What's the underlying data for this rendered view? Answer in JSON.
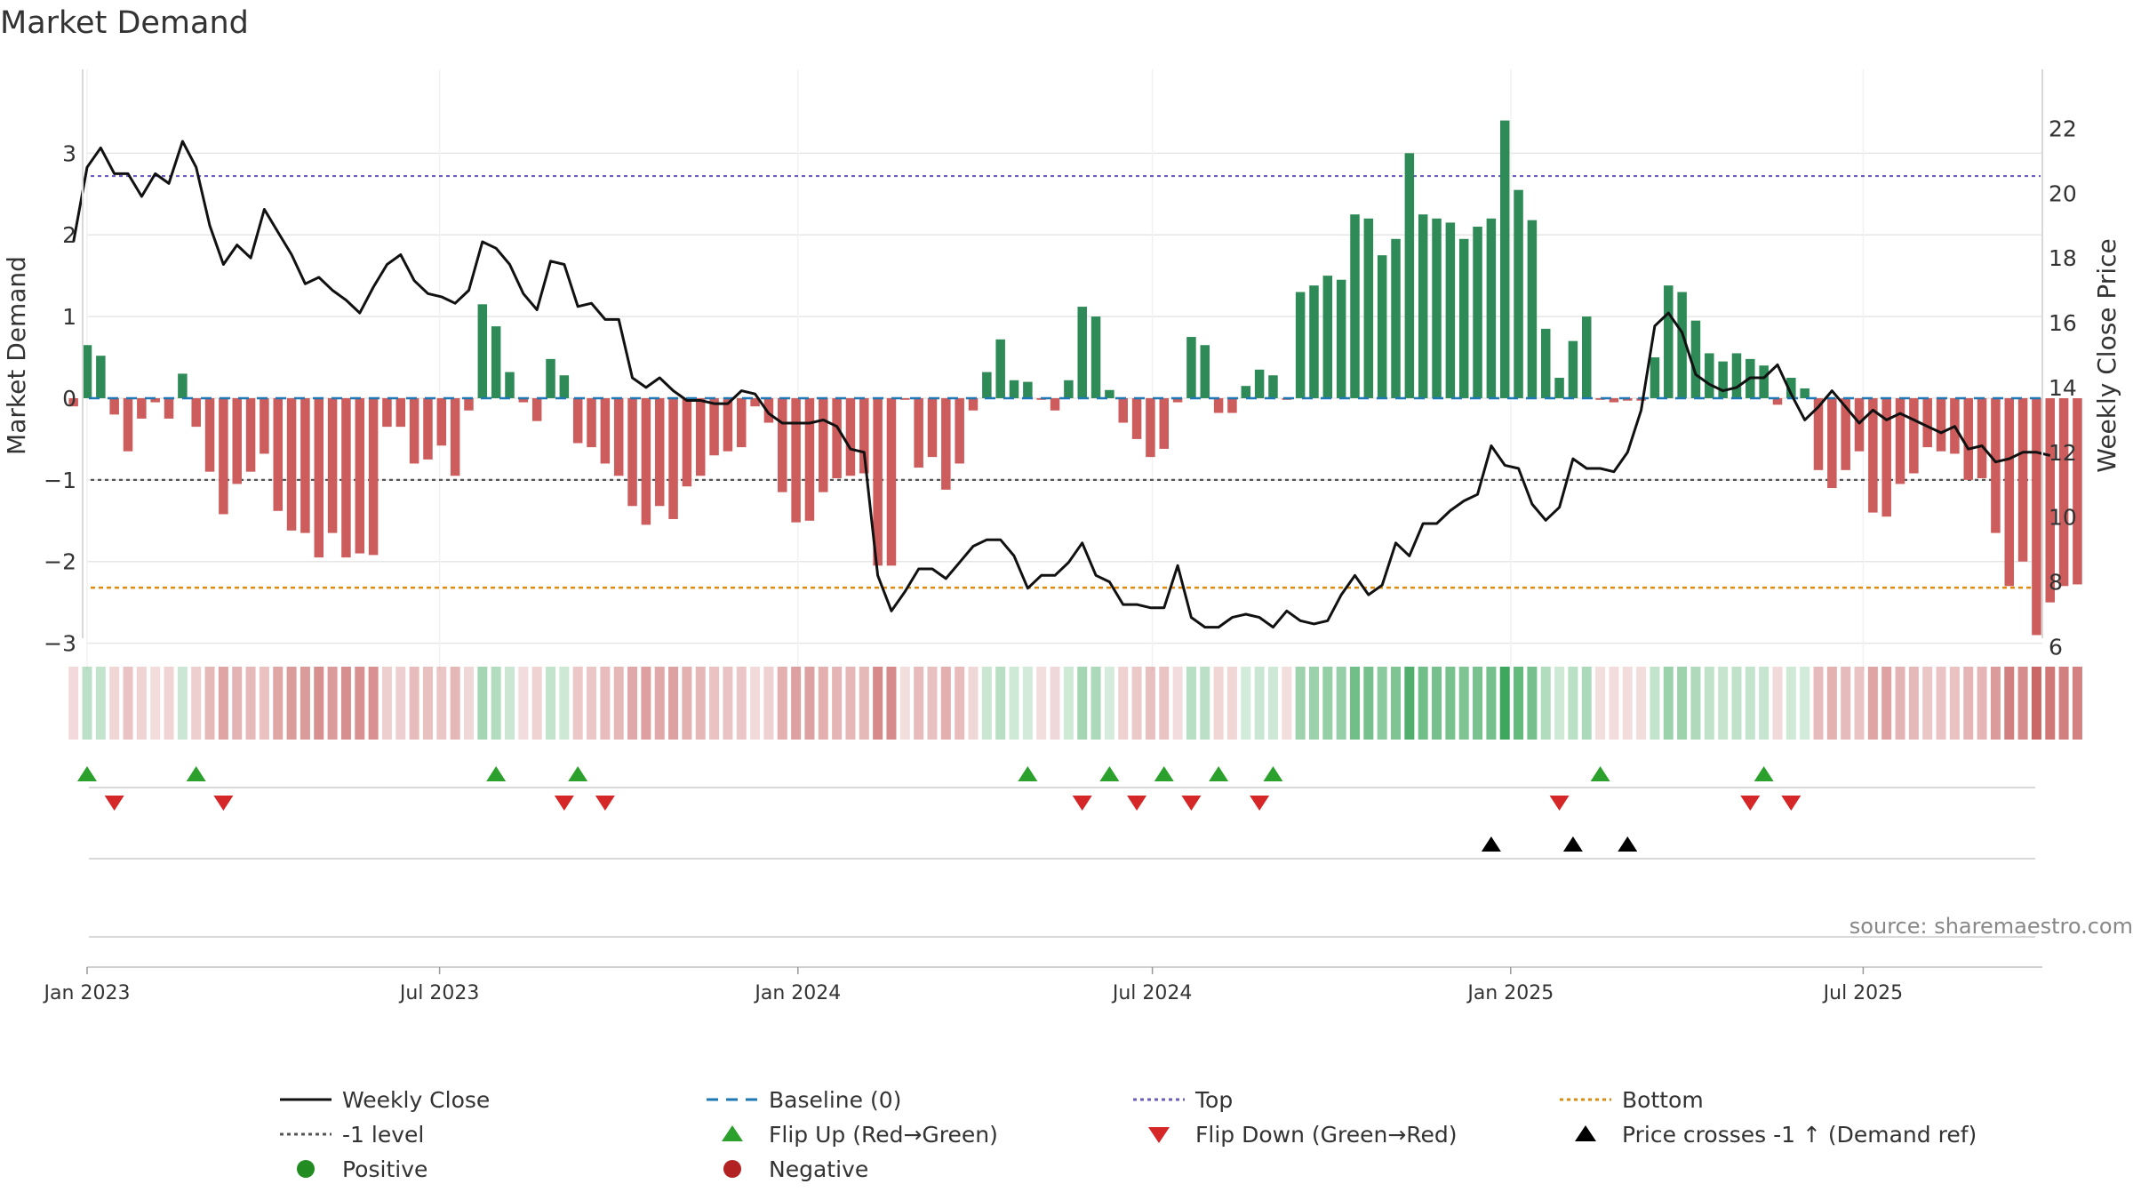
{
  "chart_data": {
    "type": "bar",
    "title": "Market Demand",
    "ylabel_left": "Market Demand",
    "ylabel_right": "Weekly Close Price",
    "source": "source: sharemaestro.com",
    "ylim_left": [
      -3.2,
      3.7
    ],
    "ylim_right": [
      5.6,
      23.0
    ],
    "yticks_left": [
      3,
      2,
      1,
      0,
      -1,
      -2,
      -3
    ],
    "yticks_left_labels": [
      "3",
      "2",
      "1",
      "0",
      "−1",
      "−2",
      "−3"
    ],
    "yticks_right": [
      22,
      20,
      18,
      16,
      14,
      12,
      10,
      8,
      6
    ],
    "x_start": "2023-01-01",
    "x_end": "2025-10-01",
    "x_ticks": [
      {
        "date": "2023-01-01",
        "label": "Jan 2023"
      },
      {
        "date": "2023-07-01",
        "label": "Jul 2023"
      },
      {
        "date": "2024-01-01",
        "label": "Jan 2024"
      },
      {
        "date": "2024-07-01",
        "label": "Jul 2024"
      },
      {
        "date": "2025-01-01",
        "label": "Jan 2025"
      },
      {
        "date": "2025-07-01",
        "label": "Jul 2025"
      }
    ],
    "week_start": "2022-12-25",
    "levels": {
      "top": 2.72,
      "minus_one": -1.0,
      "bottom": -2.32
    },
    "demand": [
      -0.1,
      0.65,
      0.52,
      -0.2,
      -0.65,
      -0.25,
      -0.05,
      -0.25,
      0.3,
      -0.35,
      -0.9,
      -1.42,
      -1.05,
      -0.9,
      -0.68,
      -1.38,
      -1.62,
      -1.65,
      -1.95,
      -1.65,
      -1.95,
      -1.9,
      -1.92,
      -0.35,
      -0.35,
      -0.8,
      -0.75,
      -0.58,
      -0.95,
      -0.15,
      1.15,
      0.88,
      0.32,
      -0.05,
      -0.28,
      0.48,
      0.28,
      -0.55,
      -0.6,
      -0.8,
      -0.95,
      -1.32,
      -1.55,
      -1.32,
      -1.48,
      -1.08,
      -0.95,
      -0.7,
      -0.65,
      -0.6,
      -0.1,
      -0.3,
      -1.15,
      -1.52,
      -1.5,
      -1.15,
      -0.98,
      -0.95,
      -0.92,
      -2.05,
      -2.05,
      -0.02,
      -0.85,
      -0.72,
      -1.12,
      -0.8,
      -0.15,
      0.32,
      0.72,
      0.22,
      0.2,
      -0.02,
      -0.15,
      0.22,
      1.12,
      1.0,
      0.1,
      -0.3,
      -0.5,
      -0.72,
      -0.62,
      -0.05,
      0.75,
      0.65,
      -0.18,
      -0.18,
      0.15,
      0.35,
      0.28,
      -0.02,
      1.3,
      1.38,
      1.5,
      1.45,
      2.25,
      2.2,
      1.75,
      1.95,
      3.0,
      2.25,
      2.2,
      2.15,
      1.95,
      2.1,
      2.2,
      3.4,
      2.55,
      2.18,
      0.85,
      0.25,
      0.7,
      1.0,
      -0.02,
      -0.05,
      -0.03,
      -0.03,
      0.5,
      1.38,
      1.3,
      0.95,
      0.55,
      0.45,
      0.55,
      0.48,
      0.4,
      -0.08,
      0.25,
      0.12,
      -0.88,
      -1.1,
      -0.88,
      -0.65,
      -1.4,
      -1.45,
      -1.05,
      -0.92,
      -0.6,
      -0.65,
      -0.68,
      -1.0,
      -0.98,
      -1.65,
      -2.3,
      -2.0,
      -2.9,
      -2.5,
      -2.3,
      -2.28
    ],
    "close": [
      18.5,
      20.8,
      21.4,
      20.6,
      20.6,
      19.9,
      20.6,
      20.3,
      21.6,
      20.8,
      19.0,
      17.8,
      18.4,
      18.0,
      19.5,
      18.8,
      18.1,
      17.2,
      17.4,
      17.0,
      16.7,
      16.3,
      17.1,
      17.8,
      18.1,
      17.3,
      16.9,
      16.8,
      16.6,
      17.0,
      18.5,
      18.3,
      17.8,
      16.9,
      16.4,
      17.9,
      17.8,
      16.5,
      16.6,
      16.1,
      16.1,
      14.3,
      14.0,
      14.3,
      13.9,
      13.6,
      13.6,
      13.5,
      13.5,
      13.9,
      13.8,
      13.2,
      12.9,
      12.9,
      12.9,
      13.0,
      12.8,
      12.1,
      12.0,
      8.2,
      7.1,
      7.7,
      8.4,
      8.4,
      8.1,
      8.6,
      9.1,
      9.3,
      9.3,
      8.8,
      7.8,
      8.2,
      8.2,
      8.6,
      9.2,
      8.2,
      8.0,
      7.3,
      7.3,
      7.2,
      7.2,
      8.5,
      6.9,
      6.6,
      6.6,
      6.9,
      7.0,
      6.9,
      6.6,
      7.1,
      6.8,
      6.7,
      6.8,
      7.6,
      8.2,
      7.6,
      7.9,
      9.2,
      8.8,
      9.8,
      9.8,
      10.2,
      10.5,
      10.7,
      12.2,
      11.6,
      11.5,
      10.4,
      9.9,
      10.3,
      11.8,
      11.5,
      11.5,
      11.4,
      12.0,
      13.3,
      15.9,
      16.3,
      15.7,
      14.4,
      14.1,
      13.9,
      14.0,
      14.3,
      14.3,
      14.7,
      13.8,
      13.0,
      13.4,
      13.9,
      13.4,
      12.9,
      13.3,
      13.0,
      13.2,
      13.0,
      12.8,
      12.6,
      12.8,
      12.1,
      12.2,
      11.7,
      11.8,
      12.0,
      12.0,
      11.9
    ],
    "series": [
      {
        "name": "Weekly Close",
        "style": "line",
        "color": "#111111"
      },
      {
        "name": "Baseline (0)",
        "style": "dash",
        "color": "#1f77b4"
      },
      {
        "name": "Top",
        "style": "dotted",
        "color": "#6a5fc0"
      },
      {
        "name": "Bottom",
        "style": "dotted",
        "color": "#e08a0b"
      },
      {
        "name": "-1 level",
        "style": "dotted",
        "color": "#555555"
      }
    ],
    "markers": {
      "flip_up_dates": [
        "2023-01-01",
        "2023-02-26",
        "2023-07-30",
        "2023-09-10",
        "2024-04-28",
        "2024-06-09",
        "2024-07-07",
        "2024-08-04",
        "2024-09-01",
        "2025-02-16",
        "2025-05-11"
      ],
      "flip_down_dates": [
        "2023-01-15",
        "2023-03-12",
        "2023-09-03",
        "2023-09-24",
        "2024-05-26",
        "2024-06-23",
        "2024-07-21",
        "2024-08-25",
        "2025-01-26",
        "2025-05-04",
        "2025-05-25"
      ],
      "price_cross_dates": [
        "2024-12-22",
        "2025-02-02",
        "2025-03-02"
      ]
    },
    "legend": [
      {
        "label": "Weekly Close",
        "symbol": "line",
        "color": "#111111"
      },
      {
        "label": "Baseline (0)",
        "symbol": "dash",
        "color": "#1f77b4"
      },
      {
        "label": "Top",
        "symbol": "dotted",
        "color": "#6a5fc0"
      },
      {
        "label": "Bottom",
        "symbol": "dotted",
        "color": "#e08a0b"
      },
      {
        "label": "-1 level",
        "symbol": "dotted",
        "color": "#555555"
      },
      {
        "label": "Flip Up (Red→Green)",
        "symbol": "triangle-up",
        "color": "#2ca02c"
      },
      {
        "label": "Flip Down (Green→Red)",
        "symbol": "triangle-down",
        "color": "#d62728"
      },
      {
        "label": "Price crosses -1 ↑ (Demand ref)",
        "symbol": "triangle-up",
        "color": "#000000"
      },
      {
        "label": "Positive",
        "symbol": "circle",
        "color": "#228b22"
      },
      {
        "label": "Negative",
        "symbol": "circle",
        "color": "#b22222"
      }
    ],
    "colors": {
      "positive": "#2e8b57",
      "negative": "#cd5c5c",
      "close": "#111111",
      "baseline": "#1f77b4",
      "top": "#6a5fc0",
      "bottom": "#e08a0b",
      "minus_one": "#555555"
    }
  }
}
